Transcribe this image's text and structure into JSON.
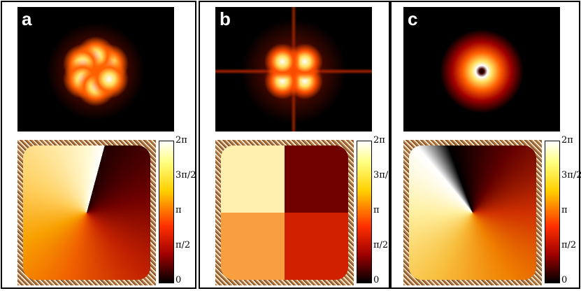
{
  "panels": [
    {
      "label": "a"
    },
    {
      "label": "b"
    },
    {
      "label": "c"
    }
  ],
  "colorbar_ticks": [
    "2π",
    "3π/2",
    "π",
    "π/2",
    "0"
  ]
}
